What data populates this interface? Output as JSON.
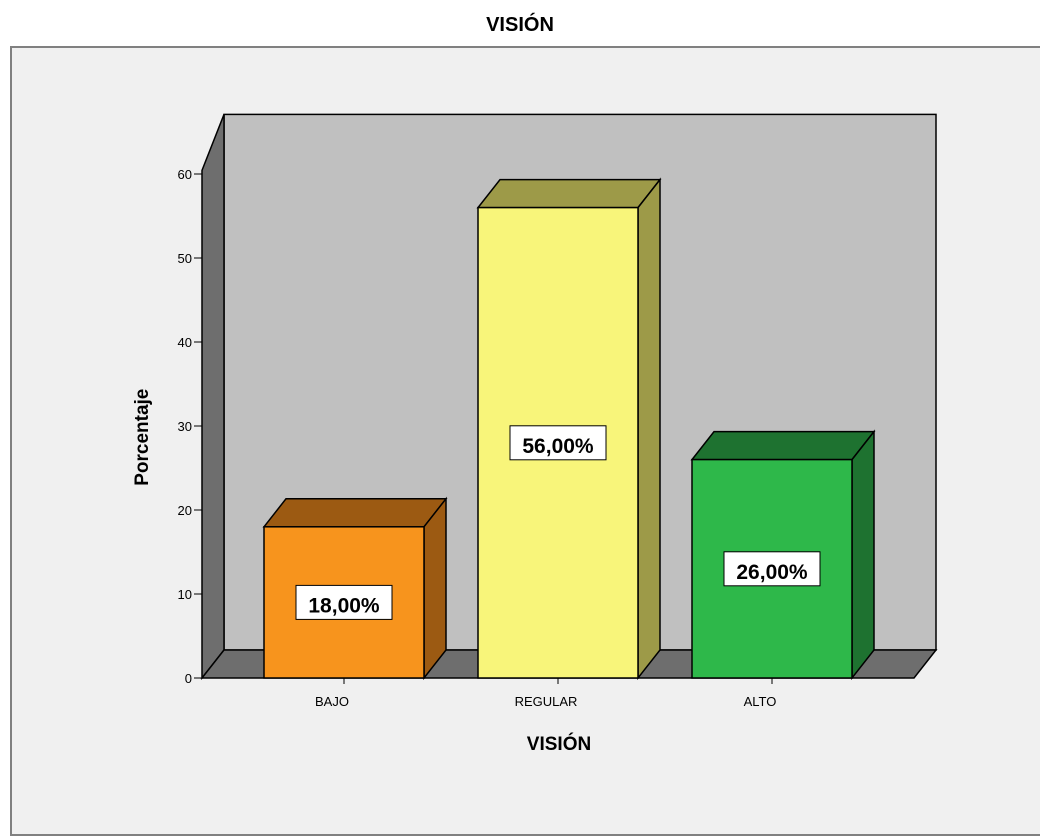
{
  "chart_data": {
    "type": "bar",
    "title": "VISIÓN",
    "xlabel": "VISIÓN",
    "ylabel": "Porcentaje",
    "categories": [
      "BAJO",
      "REGULAR",
      "ALTO"
    ],
    "values": [
      18,
      56,
      26
    ],
    "data_labels": [
      "18,00%",
      "56,00%",
      "26,00%"
    ],
    "colors": [
      "#f7941d",
      "#f8f57a",
      "#2eb84a"
    ],
    "side_colors": [
      "#9c5a12",
      "#9d9a48",
      "#1e7230"
    ],
    "yticks": [
      0,
      10,
      20,
      30,
      40,
      50,
      60
    ],
    "ylim": [
      0,
      64
    ],
    "grid": false,
    "style": "3d",
    "background": "#f0f0f0",
    "plot_background": "#c0c0c0"
  }
}
